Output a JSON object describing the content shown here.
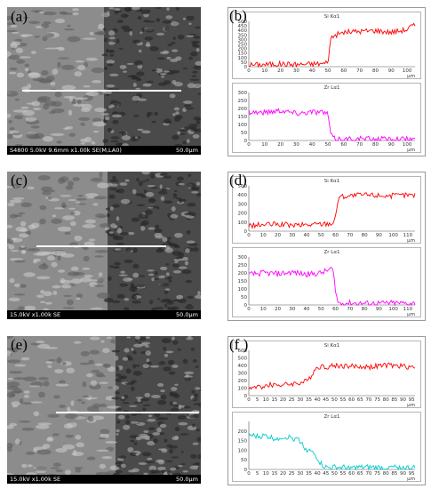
{
  "figure": {
    "panels": [
      {
        "image": {
          "label": "(a)",
          "info": "S4800 5.0kV 9.6mm x1.00k SE(M,LA0)",
          "scale": "50.0μm",
          "boundary_frac": 0.5,
          "line_frac": [
            0.08,
            0.9
          ],
          "line_y_frac": 0.56
        },
        "eds": {
          "label": "(b)"
        }
      },
      {
        "image": {
          "label": "(c)",
          "info": "15.0kV x1.00k SE",
          "scale": "50.0μm",
          "boundary_frac": 0.52,
          "line_frac": [
            0.15,
            0.82
          ],
          "line_y_frac": 0.5
        },
        "eds": {
          "label": "(d)"
        }
      },
      {
        "image": {
          "label": "(e)",
          "info": "15.0kV x1.00k SE",
          "scale": "50.0μm",
          "boundary_frac": 0.56,
          "line_frac": [
            0.25,
            0.99
          ],
          "line_y_frac": 0.51
        },
        "eds": {
          "label": "(f )"
        }
      }
    ],
    "colors": {
      "si": "#ff0000",
      "zr_b": "#ff00ff",
      "zr_d": "#ff00ff",
      "zr_f": "#00cccc"
    }
  },
  "chart_data": [
    {
      "panel": "(b)",
      "type": "line",
      "title": "Si Kα1",
      "xlabel": "μm",
      "xlim": [
        0,
        105
      ],
      "ylim": [
        0,
        500
      ],
      "xticks": [
        0,
        10,
        20,
        30,
        40,
        50,
        60,
        70,
        80,
        90,
        100
      ],
      "yticks": [
        0,
        50,
        100,
        150,
        200,
        250,
        300,
        350,
        400,
        450,
        500
      ],
      "series": [
        {
          "color": "#ff0000",
          "x": [
            0,
            10,
            20,
            30,
            40,
            48,
            50,
            52,
            60,
            70,
            80,
            90,
            100,
            103
          ],
          "y": [
            20,
            25,
            30,
            25,
            30,
            35,
            60,
            330,
            380,
            390,
            400,
            380,
            410,
            450
          ]
        }
      ]
    },
    {
      "panel": "(b)",
      "type": "line",
      "title": "Zr Lα1",
      "xlabel": "μm",
      "xlim": [
        0,
        105
      ],
      "ylim": [
        0,
        300
      ],
      "xticks": [
        0,
        10,
        20,
        30,
        40,
        50,
        60,
        70,
        80,
        90,
        100
      ],
      "yticks": [
        0,
        50,
        100,
        150,
        200,
        250,
        300
      ],
      "series": [
        {
          "color": "#ff00ff",
          "x": [
            0,
            10,
            20,
            30,
            40,
            48,
            50,
            52,
            54,
            60,
            70,
            80,
            90,
            100,
            103
          ],
          "y": [
            180,
            175,
            190,
            170,
            180,
            175,
            160,
            30,
            10,
            8,
            10,
            8,
            10,
            8,
            10
          ]
        }
      ]
    },
    {
      "panel": "(d)",
      "type": "line",
      "title": "Si Kα1",
      "xlabel": "μm",
      "xlim": [
        0,
        115
      ],
      "ylim": [
        0,
        500
      ],
      "xticks": [
        0,
        10,
        20,
        30,
        40,
        50,
        60,
        70,
        80,
        90,
        100,
        110
      ],
      "yticks": [
        0,
        100,
        200,
        300,
        400,
        500
      ],
      "series": [
        {
          "color": "#ff0000",
          "x": [
            0,
            10,
            20,
            30,
            40,
            50,
            58,
            60,
            62,
            70,
            80,
            90,
            100,
            110,
            113
          ],
          "y": [
            60,
            70,
            75,
            65,
            70,
            80,
            90,
            150,
            380,
            390,
            400,
            395,
            390,
            400,
            395
          ]
        }
      ]
    },
    {
      "panel": "(d)",
      "type": "line",
      "title": "Zr Lα1",
      "xlabel": "μm",
      "xlim": [
        0,
        115
      ],
      "ylim": [
        0,
        300
      ],
      "xticks": [
        0,
        10,
        20,
        30,
        40,
        50,
        60,
        70,
        80,
        90,
        100,
        110
      ],
      "yticks": [
        0,
        50,
        100,
        150,
        200,
        250,
        300
      ],
      "series": [
        {
          "color": "#ff00ff",
          "x": [
            0,
            10,
            20,
            30,
            40,
            50,
            58,
            60,
            62,
            70,
            80,
            90,
            100,
            110,
            113
          ],
          "y": [
            190,
            200,
            195,
            205,
            190,
            200,
            230,
            80,
            10,
            12,
            10,
            10,
            12,
            10,
            10
          ]
        }
      ]
    },
    {
      "panel": "(f)",
      "type": "line",
      "title": "Si Kα1",
      "xlabel": "μm",
      "xlim": [
        0,
        97
      ],
      "ylim": [
        0,
        600
      ],
      "xticks": [
        0,
        5,
        10,
        15,
        20,
        25,
        30,
        35,
        40,
        45,
        50,
        55,
        60,
        65,
        70,
        75,
        80,
        85,
        90,
        95
      ],
      "yticks": [
        0,
        100,
        200,
        300,
        400,
        500,
        600
      ],
      "series": [
        {
          "color": "#ff0000",
          "x": [
            0,
            5,
            10,
            15,
            20,
            25,
            30,
            35,
            38,
            40,
            42,
            45,
            50,
            60,
            70,
            80,
            90,
            95
          ],
          "y": [
            100,
            110,
            130,
            150,
            140,
            160,
            170,
            200,
            330,
            380,
            390,
            380,
            400,
            390,
            380,
            400,
            390,
            380
          ]
        }
      ]
    },
    {
      "panel": "(f)",
      "type": "line",
      "title": "Zr Lα1",
      "xlabel": "μm",
      "xlim": [
        0,
        97
      ],
      "ylim": [
        0,
        250
      ],
      "xticks": [
        0,
        5,
        10,
        15,
        20,
        25,
        30,
        35,
        40,
        45,
        50,
        55,
        60,
        65,
        70,
        75,
        80,
        85,
        90,
        95
      ],
      "yticks": [
        0,
        50,
        100,
        150,
        200
      ],
      "series": [
        {
          "color": "#00cccc",
          "x": [
            0,
            5,
            10,
            15,
            20,
            25,
            30,
            33,
            35,
            38,
            40,
            42,
            44,
            46,
            50,
            60,
            70,
            80,
            90,
            95
          ],
          "y": [
            180,
            170,
            175,
            160,
            170,
            165,
            150,
            110,
            100,
            80,
            60,
            30,
            15,
            8,
            10,
            8,
            10,
            8,
            10,
            8
          ]
        }
      ]
    }
  ]
}
